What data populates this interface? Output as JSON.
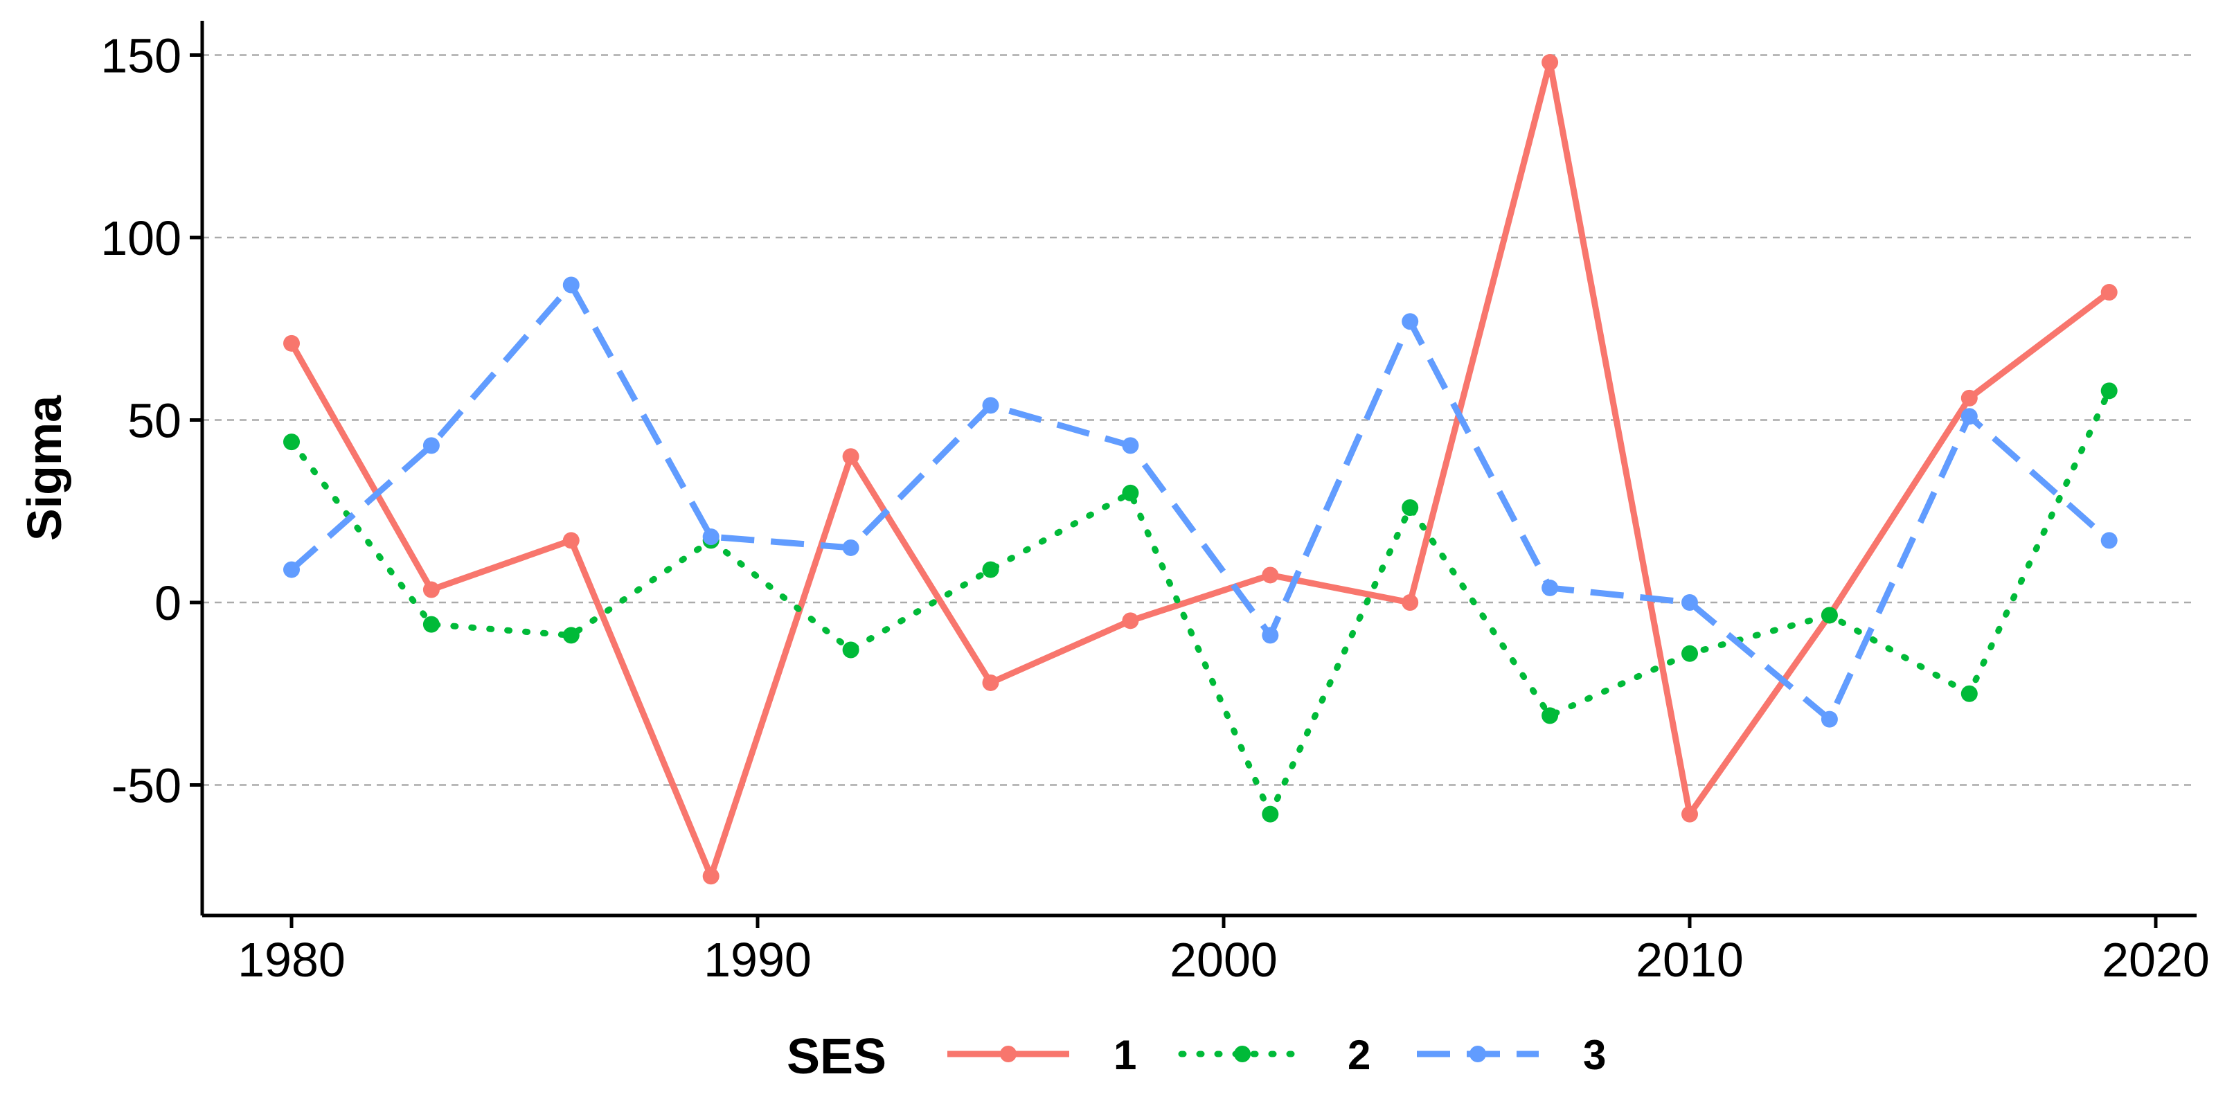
{
  "chart_data": {
    "type": "line",
    "title": "",
    "xlabel": "",
    "ylabel": "Sigma",
    "xlim": [
      1978,
      2021
    ],
    "ylim": [
      -86,
      160
    ],
    "x_ticks": [
      1980,
      1990,
      2000,
      2010,
      2020
    ],
    "y_ticks": [
      -50,
      0,
      50,
      100,
      150
    ],
    "grid": "horizontal dashed",
    "legend": {
      "title": "SES",
      "position": "bottom"
    },
    "x": [
      1980,
      1983,
      1986,
      1989,
      1992,
      1995,
      1998,
      2001,
      2004,
      2007,
      2010,
      2013,
      2016,
      2019
    ],
    "series": [
      {
        "name": "1",
        "color": "#F8766D",
        "linestyle": "solid",
        "values": [
          71,
          3.5,
          17,
          -75,
          40,
          -22,
          -5,
          7.5,
          0,
          148,
          -58,
          -3.5,
          56,
          85
        ]
      },
      {
        "name": "2",
        "color": "#00BA38",
        "linestyle": "dotted",
        "values": [
          44,
          -6,
          -9,
          17,
          -13,
          9,
          30,
          -58,
          26,
          -31,
          -14,
          -3.5,
          -25,
          58
        ]
      },
      {
        "name": "3",
        "color": "#619CFF",
        "linestyle": "dashed",
        "values": [
          9,
          43,
          87,
          18,
          15,
          54,
          43,
          -9,
          77,
          4,
          0,
          -32,
          51,
          17
        ]
      }
    ]
  }
}
